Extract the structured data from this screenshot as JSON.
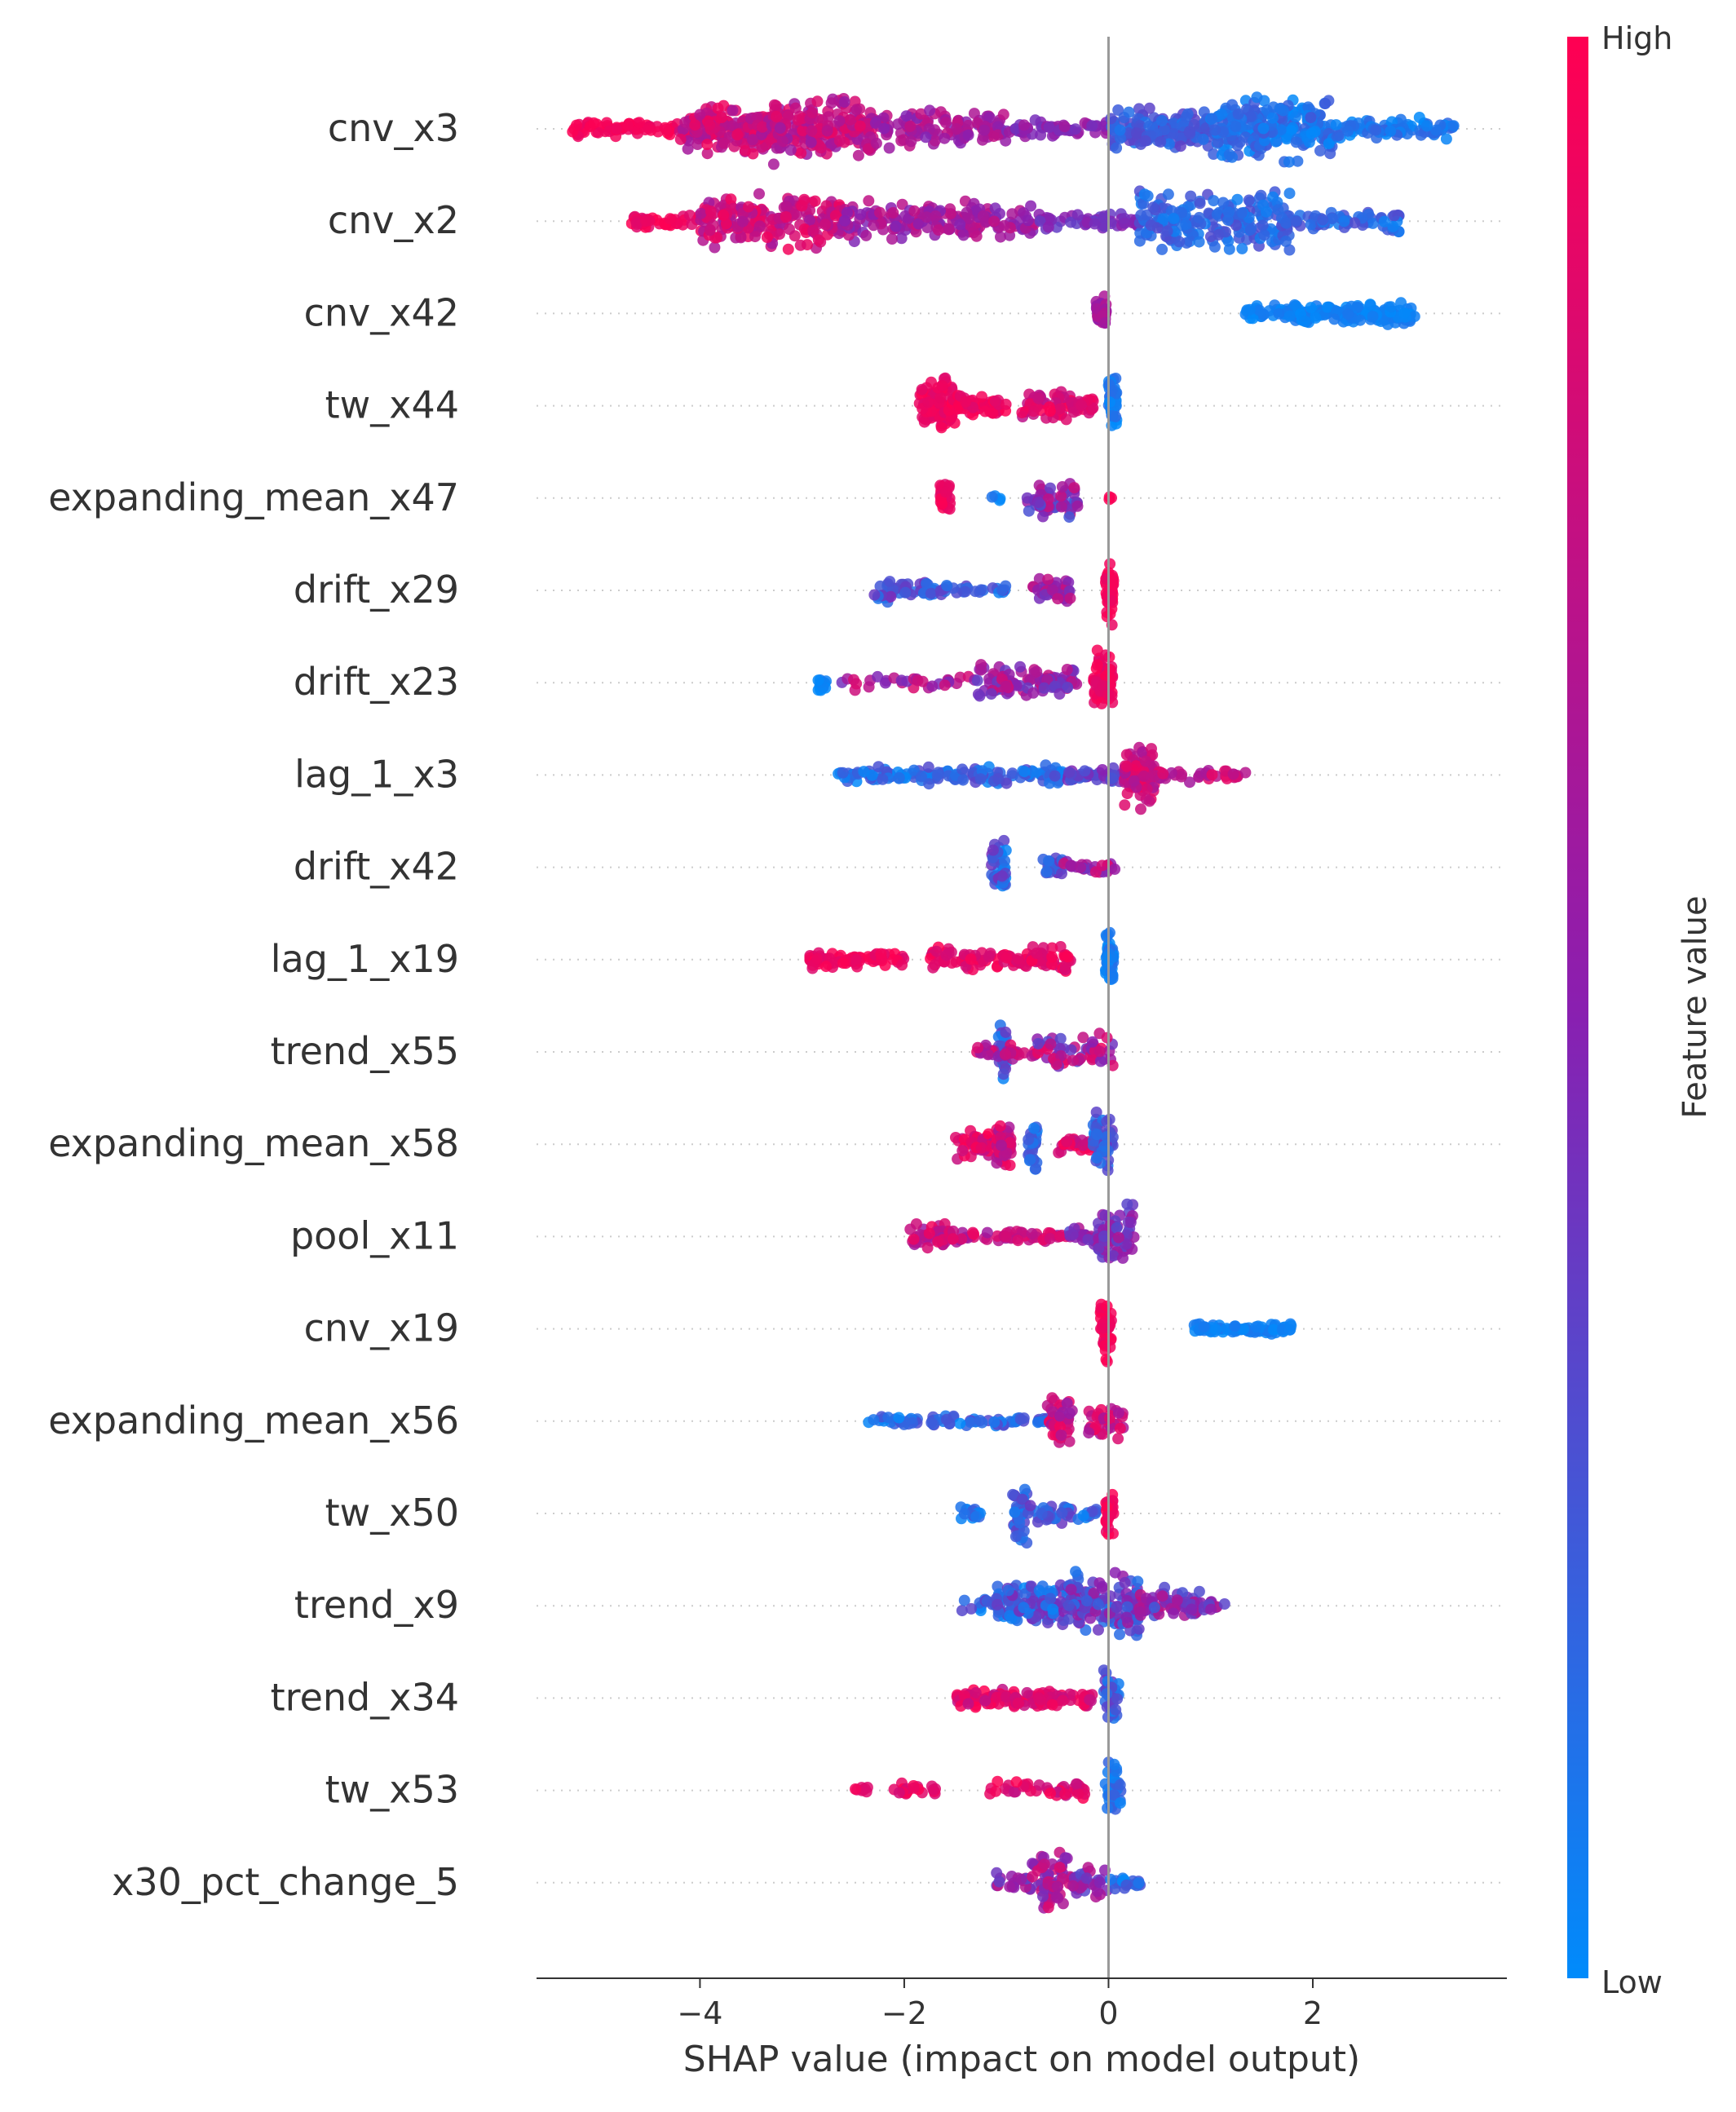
{
  "chart_data": {
    "type": "scatter",
    "subtype": "shap-beeswarm",
    "title": "",
    "xlabel": "SHAP value (impact on model output)",
    "ylabel": "",
    "xlim": [
      -5.6,
      3.9
    ],
    "x_ticks": [
      -4,
      -2,
      0,
      2
    ],
    "x_tick_labels": [
      "−4",
      "−2",
      "0",
      "2"
    ],
    "grid": false,
    "colorbar": {
      "label": "Feature value",
      "high_label": "High",
      "low_label": "Low",
      "high_color": "#ff0052",
      "low_color": "#008bfb"
    },
    "features": [
      {
        "name": "cnv_x3",
        "segments": [
          {
            "from": -5.25,
            "to": -4.2,
            "spread": 0.25,
            "count": 60,
            "color": [
              0.9,
              1.0
            ]
          },
          {
            "from": -4.2,
            "to": -3.3,
            "spread": 0.65,
            "count": 170,
            "color": [
              0.6,
              0.95
            ]
          },
          {
            "from": -3.3,
            "to": -2.3,
            "spread": 0.85,
            "count": 200,
            "color": [
              0.55,
              0.9
            ]
          },
          {
            "from": -2.3,
            "to": -1.0,
            "spread": 0.55,
            "count": 120,
            "color": [
              0.45,
              0.75
            ]
          },
          {
            "from": -1.0,
            "to": 0.0,
            "spread": 0.25,
            "count": 50,
            "color": [
              0.4,
              0.6
            ]
          },
          {
            "from": 0.0,
            "to": 1.0,
            "spread": 0.55,
            "count": 150,
            "color": [
              0.1,
              0.35
            ]
          },
          {
            "from": 1.0,
            "to": 2.2,
            "spread": 0.85,
            "count": 230,
            "color": [
              0.0,
              0.25
            ]
          },
          {
            "from": 2.2,
            "to": 3.4,
            "spread": 0.3,
            "count": 80,
            "color": [
              0.0,
              0.2
            ]
          }
        ]
      },
      {
        "name": "cnv_x2",
        "segments": [
          {
            "from": -4.7,
            "to": -4.0,
            "spread": 0.2,
            "count": 40,
            "color": [
              0.85,
              1.0
            ]
          },
          {
            "from": -4.0,
            "to": -2.6,
            "spread": 0.75,
            "count": 190,
            "color": [
              0.6,
              0.95
            ]
          },
          {
            "from": -2.6,
            "to": -0.7,
            "spread": 0.55,
            "count": 160,
            "color": [
              0.45,
              0.75
            ]
          },
          {
            "from": -0.7,
            "to": 0.3,
            "spread": 0.25,
            "count": 50,
            "color": [
              0.35,
              0.55
            ]
          },
          {
            "from": 0.3,
            "to": 1.8,
            "spread": 0.85,
            "count": 200,
            "color": [
              0.05,
              0.3
            ]
          },
          {
            "from": 1.8,
            "to": 2.9,
            "spread": 0.3,
            "count": 60,
            "color": [
              0.05,
              0.3
            ]
          }
        ]
      },
      {
        "name": "cnv_x42",
        "segments": [
          {
            "from": -0.12,
            "to": -0.02,
            "spread": 0.45,
            "count": 45,
            "color": [
              0.5,
              0.7
            ]
          },
          {
            "from": 1.3,
            "to": 3.0,
            "spread": 0.28,
            "count": 180,
            "color": [
              0.0,
              0.1
            ]
          }
        ]
      },
      {
        "name": "tw_x44",
        "segments": [
          {
            "from": -1.85,
            "to": -1.5,
            "spread": 0.75,
            "count": 90,
            "color": [
              0.85,
              1.0
            ]
          },
          {
            "from": -1.5,
            "to": -1.0,
            "spread": 0.35,
            "count": 45,
            "color": [
              0.85,
              1.0
            ]
          },
          {
            "from": -0.85,
            "to": -0.15,
            "spread": 0.4,
            "count": 70,
            "color": [
              0.7,
              1.0
            ]
          },
          {
            "from": 0.0,
            "to": 0.08,
            "spread": 0.85,
            "count": 40,
            "color": [
              0.0,
              0.15
            ]
          }
        ]
      },
      {
        "name": "expanding_mean_x47",
        "segments": [
          {
            "from": -1.65,
            "to": -1.55,
            "spread": 0.45,
            "count": 25,
            "color": [
              0.85,
              1.0
            ]
          },
          {
            "from": -1.15,
            "to": -1.05,
            "spread": 0.1,
            "count": 4,
            "color": [
              0.0,
              0.2
            ]
          },
          {
            "from": -0.8,
            "to": -0.3,
            "spread": 0.55,
            "count": 55,
            "color": [
              0.2,
              0.8
            ]
          },
          {
            "from": -0.02,
            "to": 0.05,
            "spread": 0.1,
            "count": 3,
            "color": [
              0.95,
              1.0
            ]
          }
        ]
      },
      {
        "name": "drift_x29",
        "segments": [
          {
            "from": -2.3,
            "to": -1.7,
            "spread": 0.35,
            "count": 45,
            "color": [
              0.1,
              0.45
            ]
          },
          {
            "from": -1.7,
            "to": -1.0,
            "spread": 0.15,
            "count": 25,
            "color": [
              0.05,
              0.35
            ]
          },
          {
            "from": -0.75,
            "to": -0.35,
            "spread": 0.35,
            "count": 35,
            "color": [
              0.4,
              0.75
            ]
          },
          {
            "from": -0.03,
            "to": 0.05,
            "spread": 0.85,
            "count": 40,
            "color": [
              0.9,
              1.0
            ]
          }
        ]
      },
      {
        "name": "drift_x23",
        "segments": [
          {
            "from": -2.85,
            "to": -2.75,
            "spread": 0.35,
            "count": 15,
            "color": [
              0.0,
              0.15
            ]
          },
          {
            "from": -2.7,
            "to": -1.3,
            "spread": 0.2,
            "count": 30,
            "color": [
              0.4,
              0.85
            ]
          },
          {
            "from": -1.3,
            "to": -0.3,
            "spread": 0.5,
            "count": 90,
            "color": [
              0.3,
              0.8
            ]
          },
          {
            "from": -0.15,
            "to": 0.05,
            "spread": 0.85,
            "count": 55,
            "color": [
              0.85,
              1.0
            ]
          }
        ]
      },
      {
        "name": "lag_1_x3",
        "segments": [
          {
            "from": -2.65,
            "to": -0.4,
            "spread": 0.25,
            "count": 140,
            "color": [
              0.0,
              0.35
            ]
          },
          {
            "from": -0.4,
            "to": 0.15,
            "spread": 0.2,
            "count": 40,
            "color": [
              0.2,
              0.5
            ]
          },
          {
            "from": 0.15,
            "to": 0.45,
            "spread": 0.85,
            "count": 80,
            "color": [
              0.6,
              0.95
            ]
          },
          {
            "from": 0.45,
            "to": 1.35,
            "spread": 0.18,
            "count": 35,
            "color": [
              0.6,
              0.9
            ]
          }
        ]
      },
      {
        "name": "drift_x42",
        "segments": [
          {
            "from": -1.15,
            "to": -1.0,
            "spread": 0.85,
            "count": 40,
            "color": [
              0.0,
              0.45
            ]
          },
          {
            "from": -0.65,
            "to": -0.45,
            "spread": 0.35,
            "count": 20,
            "color": [
              0.1,
              0.5
            ]
          },
          {
            "from": -0.45,
            "to": 0.1,
            "spread": 0.2,
            "count": 25,
            "color": [
              0.4,
              0.95
            ]
          }
        ]
      },
      {
        "name": "lag_1_x19",
        "segments": [
          {
            "from": -2.95,
            "to": -2.0,
            "spread": 0.25,
            "count": 70,
            "color": [
              0.85,
              1.0
            ]
          },
          {
            "from": -1.75,
            "to": -0.35,
            "spread": 0.35,
            "count": 110,
            "color": [
              0.8,
              1.0
            ]
          },
          {
            "from": -0.03,
            "to": 0.05,
            "spread": 0.85,
            "count": 40,
            "color": [
              0.0,
              0.15
            ]
          }
        ]
      },
      {
        "name": "trend_x55",
        "segments": [
          {
            "from": -1.08,
            "to": -1.0,
            "spread": 0.85,
            "count": 30,
            "color": [
              0.0,
              0.4
            ]
          },
          {
            "from": -1.3,
            "to": -0.7,
            "spread": 0.2,
            "count": 30,
            "color": [
              0.5,
              0.95
            ]
          },
          {
            "from": -0.7,
            "to": 0.05,
            "spread": 0.5,
            "count": 60,
            "color": [
              0.3,
              0.95
            ]
          }
        ]
      },
      {
        "name": "expanding_mean_x58",
        "segments": [
          {
            "from": -1.5,
            "to": -0.95,
            "spread": 0.4,
            "count": 60,
            "color": [
              0.7,
              1.0
            ]
          },
          {
            "from": -1.1,
            "to": -0.95,
            "spread": 0.85,
            "count": 35,
            "color": [
              0.6,
              0.95
            ]
          },
          {
            "from": -0.8,
            "to": -0.7,
            "spread": 0.85,
            "count": 25,
            "color": [
              0.05,
              0.3
            ]
          },
          {
            "from": -0.5,
            "to": -0.1,
            "spread": 0.25,
            "count": 30,
            "color": [
              0.7,
              1.0
            ]
          },
          {
            "from": -0.15,
            "to": 0.05,
            "spread": 0.85,
            "count": 50,
            "color": [
              0.05,
              0.4
            ]
          }
        ]
      },
      {
        "name": "pool_x11",
        "segments": [
          {
            "from": -1.95,
            "to": -1.55,
            "spread": 0.35,
            "count": 45,
            "color": [
              0.55,
              0.95
            ]
          },
          {
            "from": -1.55,
            "to": -0.4,
            "spread": 0.2,
            "count": 50,
            "color": [
              0.55,
              0.95
            ]
          },
          {
            "from": -0.4,
            "to": -0.1,
            "spread": 0.25,
            "count": 25,
            "color": [
              0.3,
              0.7
            ]
          },
          {
            "from": -0.1,
            "to": 0.25,
            "spread": 0.85,
            "count": 60,
            "color": [
              0.3,
              0.65
            ]
          }
        ]
      },
      {
        "name": "cnv_x19",
        "segments": [
          {
            "from": -0.08,
            "to": 0.03,
            "spread": 0.85,
            "count": 45,
            "color": [
              0.9,
              1.0
            ]
          },
          {
            "from": 0.8,
            "to": 1.8,
            "spread": 0.18,
            "count": 70,
            "color": [
              0.0,
              0.1
            ]
          }
        ]
      },
      {
        "name": "expanding_mean_x56",
        "segments": [
          {
            "from": -2.4,
            "to": -0.6,
            "spread": 0.15,
            "count": 70,
            "color": [
              0.0,
              0.35
            ]
          },
          {
            "from": -0.6,
            "to": -0.35,
            "spread": 0.85,
            "count": 40,
            "color": [
              0.55,
              0.95
            ]
          },
          {
            "from": -0.2,
            "to": 0.15,
            "spread": 0.45,
            "count": 35,
            "color": [
              0.6,
              1.0
            ]
          }
        ]
      },
      {
        "name": "tw_x50",
        "segments": [
          {
            "from": -1.45,
            "to": -1.25,
            "spread": 0.25,
            "count": 15,
            "color": [
              0.0,
              0.25
            ]
          },
          {
            "from": -0.95,
            "to": -0.8,
            "spread": 0.85,
            "count": 35,
            "color": [
              0.05,
              0.35
            ]
          },
          {
            "from": -0.8,
            "to": -0.35,
            "spread": 0.25,
            "count": 30,
            "color": [
              0.05,
              0.4
            ]
          },
          {
            "from": -0.3,
            "to": -0.1,
            "spread": 0.15,
            "count": 10,
            "color": [
              0.0,
              0.35
            ]
          },
          {
            "from": -0.03,
            "to": 0.05,
            "spread": 0.85,
            "count": 30,
            "color": [
              0.9,
              1.0
            ]
          }
        ]
      },
      {
        "name": "trend_x9",
        "segments": [
          {
            "from": -1.45,
            "to": -1.1,
            "spread": 0.25,
            "count": 15,
            "color": [
              0.0,
              0.4
            ]
          },
          {
            "from": -1.1,
            "to": -0.4,
            "spread": 0.75,
            "count": 110,
            "color": [
              0.0,
              0.5
            ]
          },
          {
            "from": -0.4,
            "to": 0.3,
            "spread": 0.9,
            "count": 130,
            "color": [
              0.1,
              0.6
            ]
          },
          {
            "from": 0.3,
            "to": 0.9,
            "spread": 0.5,
            "count": 60,
            "color": [
              0.2,
              0.75
            ]
          },
          {
            "from": 0.9,
            "to": 1.15,
            "spread": 0.2,
            "count": 12,
            "color": [
              0.3,
              0.7
            ]
          }
        ]
      },
      {
        "name": "trend_x34",
        "segments": [
          {
            "from": -1.5,
            "to": -0.15,
            "spread": 0.28,
            "count": 110,
            "color": [
              0.7,
              1.0
            ]
          },
          {
            "from": -0.05,
            "to": 0.1,
            "spread": 0.85,
            "count": 35,
            "color": [
              0.05,
              0.4
            ]
          }
        ]
      },
      {
        "name": "tw_x53",
        "segments": [
          {
            "from": -2.5,
            "to": -2.35,
            "spread": 0.2,
            "count": 8,
            "color": [
              0.85,
              1.0
            ]
          },
          {
            "from": -2.1,
            "to": -1.65,
            "spread": 0.25,
            "count": 20,
            "color": [
              0.8,
              1.0
            ]
          },
          {
            "from": -1.2,
            "to": -0.2,
            "spread": 0.25,
            "count": 40,
            "color": [
              0.7,
              1.0
            ]
          },
          {
            "from": -0.03,
            "to": 0.12,
            "spread": 0.85,
            "count": 35,
            "color": [
              0.0,
              0.25
            ]
          }
        ]
      },
      {
        "name": "x30_pct_change_5",
        "segments": [
          {
            "from": -1.1,
            "to": -0.75,
            "spread": 0.3,
            "count": 20,
            "color": [
              0.3,
              0.8
            ]
          },
          {
            "from": -0.75,
            "to": -0.35,
            "spread": 0.85,
            "count": 60,
            "color": [
              0.4,
              0.85
            ]
          },
          {
            "from": -0.35,
            "to": 0.0,
            "spread": 0.45,
            "count": 30,
            "color": [
              0.3,
              0.7
            ]
          },
          {
            "from": 0.0,
            "to": 0.35,
            "spread": 0.2,
            "count": 20,
            "color": [
              0.0,
              0.3
            ]
          }
        ]
      }
    ]
  }
}
